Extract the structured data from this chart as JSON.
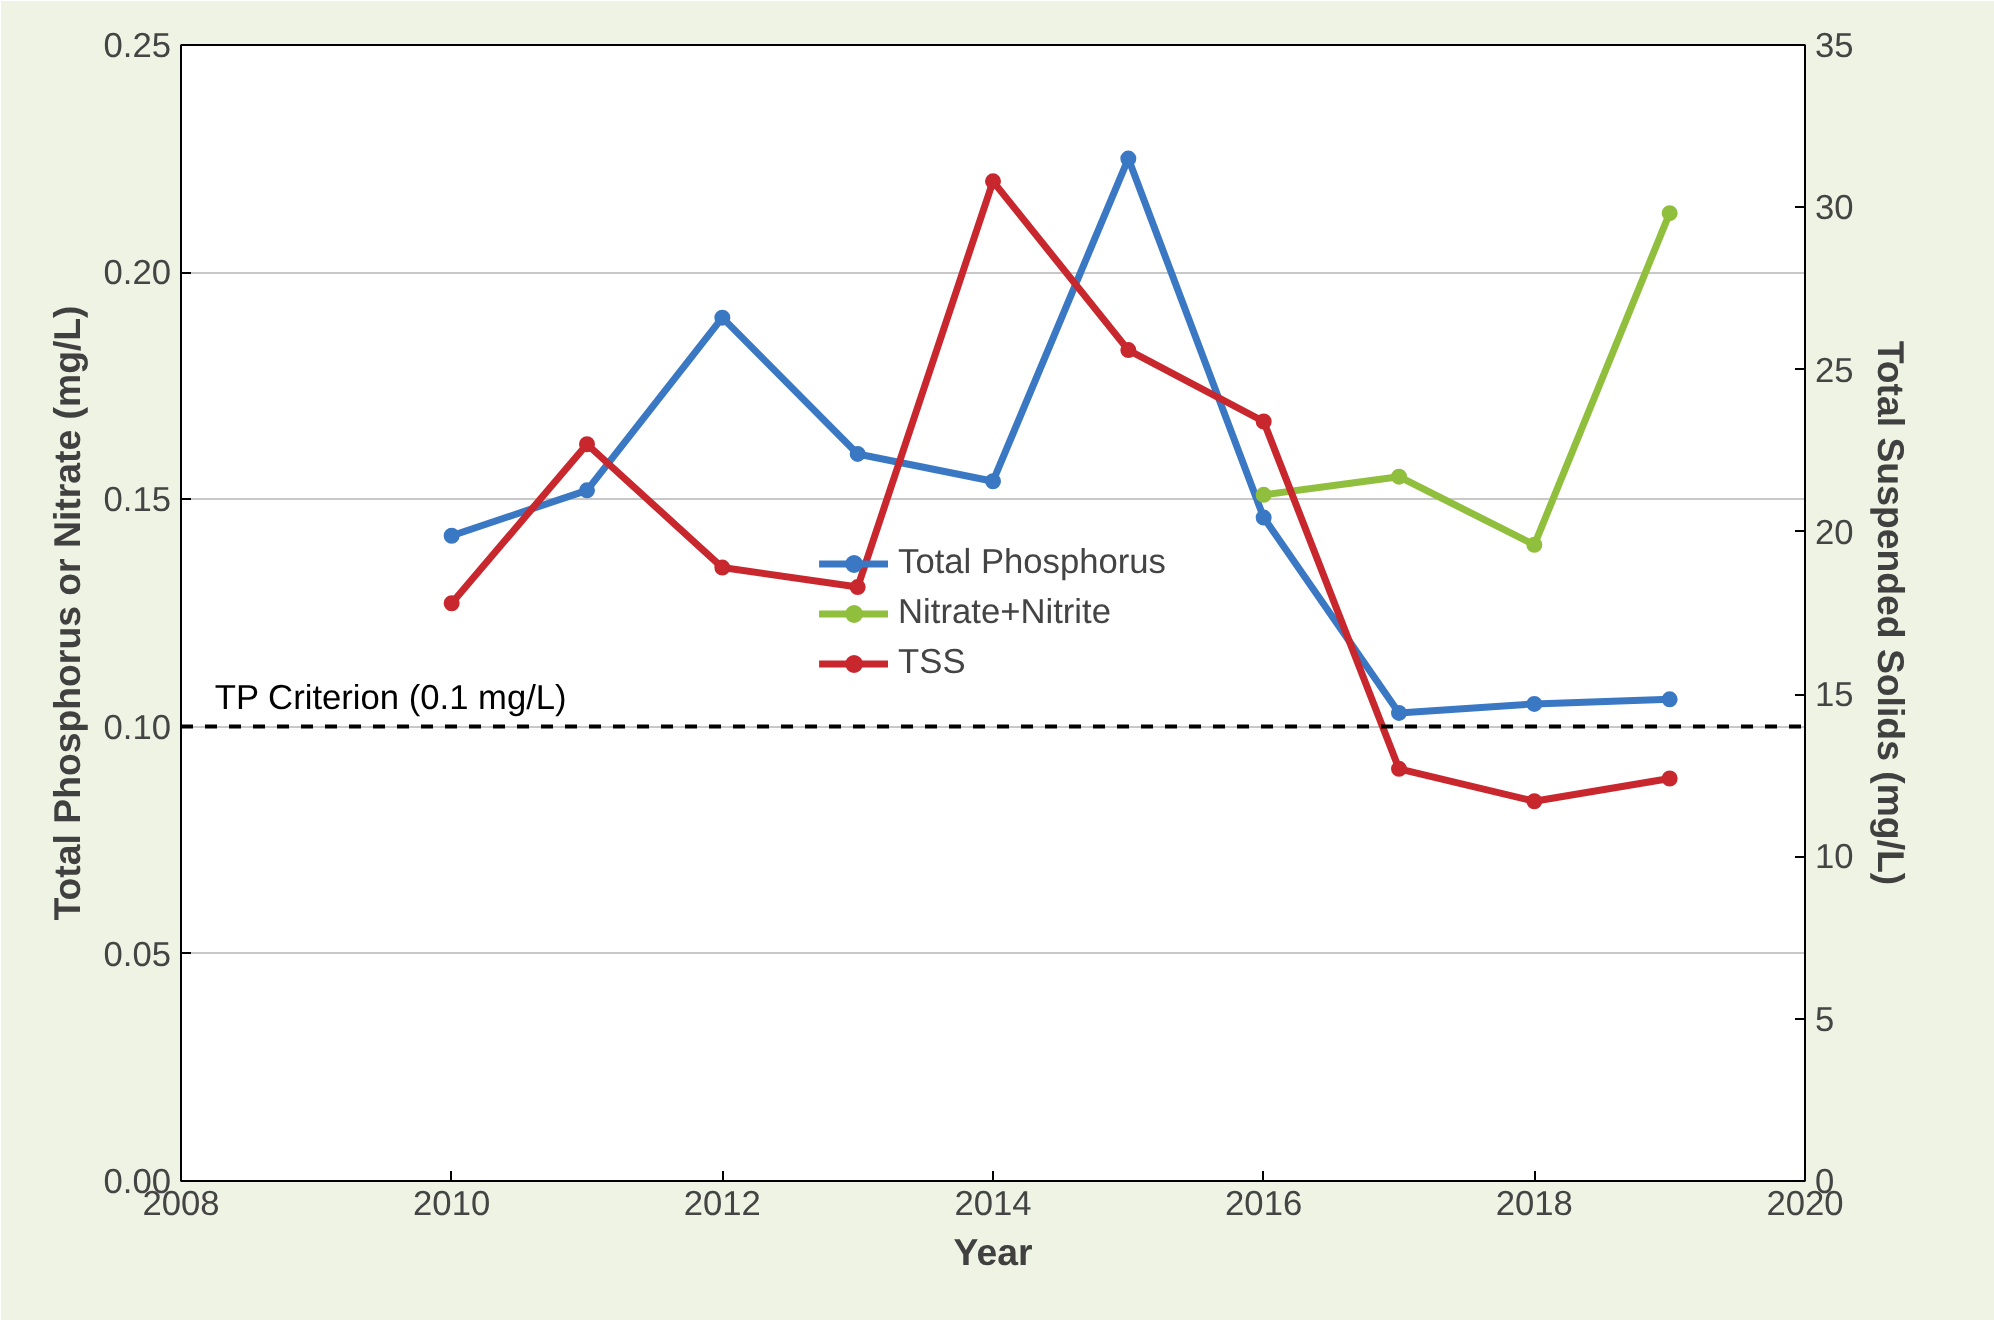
{
  "chart_data": {
    "type": "line",
    "xlabel": "Year",
    "ylabel": "Total Phosphorus or Nitrate (mg/L)",
    "y2label": "Total Suspended Solids (mg/L)",
    "xlim": [
      2008,
      2020
    ],
    "xticks": [
      2008,
      2010,
      2012,
      2014,
      2016,
      2018,
      2020
    ],
    "ylim": [
      0,
      0.25
    ],
    "yticks": [
      {
        "value": 0,
        "label": "0.00"
      },
      {
        "value": 0.05,
        "label": "0.05"
      },
      {
        "value": 0.1,
        "label": "0.10"
      },
      {
        "value": 0.15,
        "label": "0.15"
      },
      {
        "value": 0.2,
        "label": "0.20"
      },
      {
        "value": 0.25,
        "label": "0.25"
      }
    ],
    "y2lim": [
      0,
      35
    ],
    "y2ticks": [
      0,
      5,
      10,
      15,
      20,
      25,
      30,
      35
    ],
    "grid": "y",
    "legend": "center",
    "marker": "circle",
    "line_style": "solid",
    "series": [
      {
        "name": "Total Phosphorus",
        "color": "#3a78c3",
        "x": [
          2010,
          2011,
          2012,
          2013,
          2014,
          2015,
          2016,
          2017,
          2018,
          2019
        ],
        "values": [
          0.142,
          0.152,
          0.19,
          0.16,
          0.154,
          0.225,
          0.146,
          0.103,
          0.105,
          0.106
        ]
      },
      {
        "name": "Nitrate+Nitrite",
        "color": "#8fbf3c",
        "x": [
          2016,
          2017,
          2018,
          2019
        ],
        "values": [
          0.151,
          0.155,
          0.14,
          0.213
        ]
      },
      {
        "name": "TSS",
        "color": "#c8272e",
        "axis": "y2",
        "x": [
          2010,
          2011,
          2012,
          2013,
          2014,
          2015,
          2016,
          2017,
          2018,
          2019
        ],
        "values": [
          17.8,
          22.7,
          18.9,
          18.3,
          30.8,
          25.6,
          23.4,
          12.7,
          11.7,
          12.4
        ]
      }
    ],
    "ref_lines": [
      {
        "axis": "y",
        "value": 0.1,
        "label": "TP Criterion (0.1 mg/L)",
        "color": "#000000",
        "line_style": "dashed"
      }
    ]
  }
}
